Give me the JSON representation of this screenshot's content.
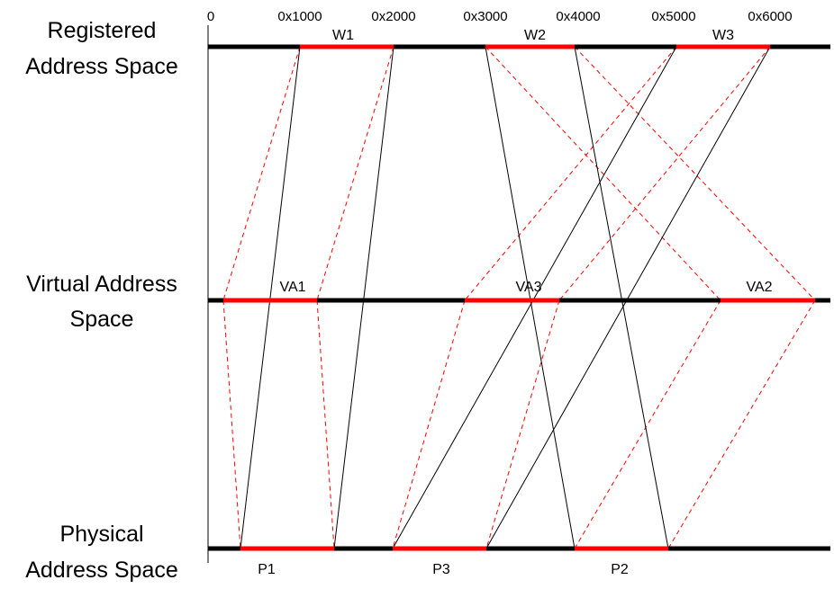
{
  "row_labels": {
    "registered_line1": "Registered",
    "registered_line2": "Address Space",
    "virtual_line1": "Virtual Address",
    "virtual_line2": "Space",
    "physical_line1": "Physical",
    "physical_line2": "Address Space"
  },
  "ticks": [
    "0",
    "0x1000",
    "0x2000",
    "0x3000",
    "0x4000",
    "0x5000",
    "0x6000"
  ],
  "segments": {
    "registered": [
      "W1",
      "W2",
      "W3"
    ],
    "virtual": [
      "VA1",
      "VA3",
      "VA2"
    ],
    "physical": [
      "P1",
      "P3",
      "P2"
    ]
  },
  "colors": {
    "axis": "#000000",
    "highlight": "#ff0000",
    "mapping_dashed": "#ff0000",
    "mapping_solid": "#000000"
  },
  "mappings": [
    {
      "from": "W1",
      "to": "VA1",
      "style": "dashed"
    },
    {
      "from": "W1",
      "to": "P1",
      "style": "solid"
    },
    {
      "from": "VA1",
      "to": "P1",
      "style": "dashed"
    },
    {
      "from": "W2",
      "to": "VA2",
      "style": "dashed"
    },
    {
      "from": "W2",
      "to": "P2",
      "style": "solid"
    },
    {
      "from": "VA2",
      "to": "P2",
      "style": "dashed"
    },
    {
      "from": "W3",
      "to": "VA3",
      "style": "dashed"
    },
    {
      "from": "W3",
      "to": "P3",
      "style": "solid"
    },
    {
      "from": "VA3",
      "to": "P3",
      "style": "dashed"
    }
  ]
}
